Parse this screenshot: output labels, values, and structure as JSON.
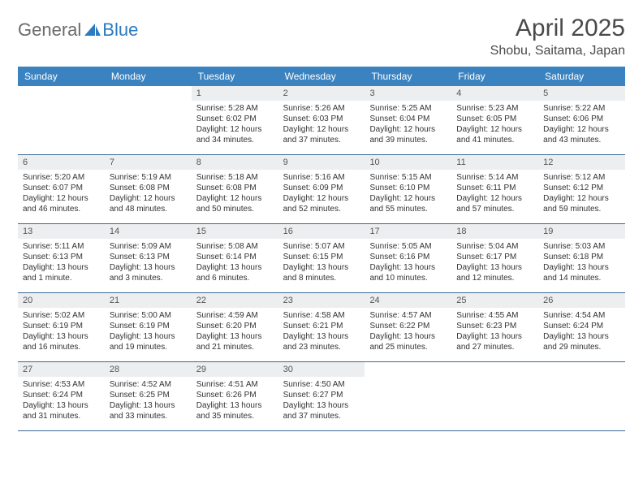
{
  "brand": {
    "general": "General",
    "blue": "Blue",
    "logo_color": "#2c7bc0",
    "general_color": "#6b6b6b"
  },
  "title": "April 2025",
  "location": "Shobu, Saitama, Japan",
  "colors": {
    "header_bg": "#3b83c0",
    "header_text": "#ffffff",
    "daynum_bg": "#eceeef",
    "daynum_text": "#555555",
    "border": "#3b6a95",
    "body_text": "#333333",
    "title_text": "#4a4a4a"
  },
  "day_headers": [
    "Sunday",
    "Monday",
    "Tuesday",
    "Wednesday",
    "Thursday",
    "Friday",
    "Saturday"
  ],
  "weeks": [
    [
      {
        "n": "",
        "sr": "",
        "ss": "",
        "dl": ""
      },
      {
        "n": "",
        "sr": "",
        "ss": "",
        "dl": ""
      },
      {
        "n": "1",
        "sr": "Sunrise: 5:28 AM",
        "ss": "Sunset: 6:02 PM",
        "dl": "Daylight: 12 hours and 34 minutes."
      },
      {
        "n": "2",
        "sr": "Sunrise: 5:26 AM",
        "ss": "Sunset: 6:03 PM",
        "dl": "Daylight: 12 hours and 37 minutes."
      },
      {
        "n": "3",
        "sr": "Sunrise: 5:25 AM",
        "ss": "Sunset: 6:04 PM",
        "dl": "Daylight: 12 hours and 39 minutes."
      },
      {
        "n": "4",
        "sr": "Sunrise: 5:23 AM",
        "ss": "Sunset: 6:05 PM",
        "dl": "Daylight: 12 hours and 41 minutes."
      },
      {
        "n": "5",
        "sr": "Sunrise: 5:22 AM",
        "ss": "Sunset: 6:06 PM",
        "dl": "Daylight: 12 hours and 43 minutes."
      }
    ],
    [
      {
        "n": "6",
        "sr": "Sunrise: 5:20 AM",
        "ss": "Sunset: 6:07 PM",
        "dl": "Daylight: 12 hours and 46 minutes."
      },
      {
        "n": "7",
        "sr": "Sunrise: 5:19 AM",
        "ss": "Sunset: 6:08 PM",
        "dl": "Daylight: 12 hours and 48 minutes."
      },
      {
        "n": "8",
        "sr": "Sunrise: 5:18 AM",
        "ss": "Sunset: 6:08 PM",
        "dl": "Daylight: 12 hours and 50 minutes."
      },
      {
        "n": "9",
        "sr": "Sunrise: 5:16 AM",
        "ss": "Sunset: 6:09 PM",
        "dl": "Daylight: 12 hours and 52 minutes."
      },
      {
        "n": "10",
        "sr": "Sunrise: 5:15 AM",
        "ss": "Sunset: 6:10 PM",
        "dl": "Daylight: 12 hours and 55 minutes."
      },
      {
        "n": "11",
        "sr": "Sunrise: 5:14 AM",
        "ss": "Sunset: 6:11 PM",
        "dl": "Daylight: 12 hours and 57 minutes."
      },
      {
        "n": "12",
        "sr": "Sunrise: 5:12 AM",
        "ss": "Sunset: 6:12 PM",
        "dl": "Daylight: 12 hours and 59 minutes."
      }
    ],
    [
      {
        "n": "13",
        "sr": "Sunrise: 5:11 AM",
        "ss": "Sunset: 6:13 PM",
        "dl": "Daylight: 13 hours and 1 minute."
      },
      {
        "n": "14",
        "sr": "Sunrise: 5:09 AM",
        "ss": "Sunset: 6:13 PM",
        "dl": "Daylight: 13 hours and 3 minutes."
      },
      {
        "n": "15",
        "sr": "Sunrise: 5:08 AM",
        "ss": "Sunset: 6:14 PM",
        "dl": "Daylight: 13 hours and 6 minutes."
      },
      {
        "n": "16",
        "sr": "Sunrise: 5:07 AM",
        "ss": "Sunset: 6:15 PM",
        "dl": "Daylight: 13 hours and 8 minutes."
      },
      {
        "n": "17",
        "sr": "Sunrise: 5:05 AM",
        "ss": "Sunset: 6:16 PM",
        "dl": "Daylight: 13 hours and 10 minutes."
      },
      {
        "n": "18",
        "sr": "Sunrise: 5:04 AM",
        "ss": "Sunset: 6:17 PM",
        "dl": "Daylight: 13 hours and 12 minutes."
      },
      {
        "n": "19",
        "sr": "Sunrise: 5:03 AM",
        "ss": "Sunset: 6:18 PM",
        "dl": "Daylight: 13 hours and 14 minutes."
      }
    ],
    [
      {
        "n": "20",
        "sr": "Sunrise: 5:02 AM",
        "ss": "Sunset: 6:19 PM",
        "dl": "Daylight: 13 hours and 16 minutes."
      },
      {
        "n": "21",
        "sr": "Sunrise: 5:00 AM",
        "ss": "Sunset: 6:19 PM",
        "dl": "Daylight: 13 hours and 19 minutes."
      },
      {
        "n": "22",
        "sr": "Sunrise: 4:59 AM",
        "ss": "Sunset: 6:20 PM",
        "dl": "Daylight: 13 hours and 21 minutes."
      },
      {
        "n": "23",
        "sr": "Sunrise: 4:58 AM",
        "ss": "Sunset: 6:21 PM",
        "dl": "Daylight: 13 hours and 23 minutes."
      },
      {
        "n": "24",
        "sr": "Sunrise: 4:57 AM",
        "ss": "Sunset: 6:22 PM",
        "dl": "Daylight: 13 hours and 25 minutes."
      },
      {
        "n": "25",
        "sr": "Sunrise: 4:55 AM",
        "ss": "Sunset: 6:23 PM",
        "dl": "Daylight: 13 hours and 27 minutes."
      },
      {
        "n": "26",
        "sr": "Sunrise: 4:54 AM",
        "ss": "Sunset: 6:24 PM",
        "dl": "Daylight: 13 hours and 29 minutes."
      }
    ],
    [
      {
        "n": "27",
        "sr": "Sunrise: 4:53 AM",
        "ss": "Sunset: 6:24 PM",
        "dl": "Daylight: 13 hours and 31 minutes."
      },
      {
        "n": "28",
        "sr": "Sunrise: 4:52 AM",
        "ss": "Sunset: 6:25 PM",
        "dl": "Daylight: 13 hours and 33 minutes."
      },
      {
        "n": "29",
        "sr": "Sunrise: 4:51 AM",
        "ss": "Sunset: 6:26 PM",
        "dl": "Daylight: 13 hours and 35 minutes."
      },
      {
        "n": "30",
        "sr": "Sunrise: 4:50 AM",
        "ss": "Sunset: 6:27 PM",
        "dl": "Daylight: 13 hours and 37 minutes."
      },
      {
        "n": "",
        "sr": "",
        "ss": "",
        "dl": ""
      },
      {
        "n": "",
        "sr": "",
        "ss": "",
        "dl": ""
      },
      {
        "n": "",
        "sr": "",
        "ss": "",
        "dl": ""
      }
    ]
  ]
}
